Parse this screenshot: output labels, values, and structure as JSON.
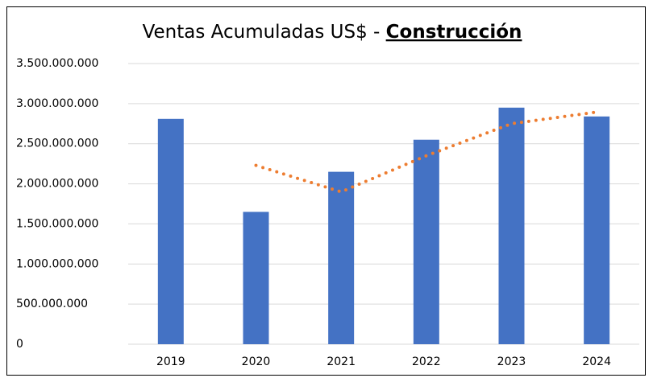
{
  "chart_data": {
    "type": "bar",
    "title": "Ventas Acumuladas US$ - ",
    "title_emphasis": "Construcción",
    "categories": [
      "2019",
      "2020",
      "2021",
      "2022",
      "2023",
      "2024"
    ],
    "series": [
      {
        "type": "bar",
        "color": "#4472c4",
        "values": [
          2810000000,
          1650000000,
          2150000000,
          2550000000,
          2950000000,
          2840000000
        ]
      },
      {
        "type": "line",
        "style": "dotted",
        "color": "#ed7d31",
        "values": [
          null,
          2230000000,
          1900000000,
          2350000000,
          2750000000,
          2895000000
        ]
      }
    ],
    "ylim": [
      0,
      3500000000
    ],
    "yticks": [
      0,
      {
        "value": 500000000,
        "label": "500.000.000"
      },
      {
        "value": 1000000000,
        "label": "1.000.000.000"
      },
      {
        "value": 1500000000,
        "label": "1.500.000.000"
      },
      {
        "value": 2000000000,
        "label": "2.000.000.000"
      },
      {
        "value": 2500000000,
        "label": "2.500.000.000"
      },
      {
        "value": 3000000000,
        "label": "3.000.000.000"
      },
      {
        "value": 3500000000,
        "label": "3.500.000.000"
      }
    ],
    "grid": true
  }
}
